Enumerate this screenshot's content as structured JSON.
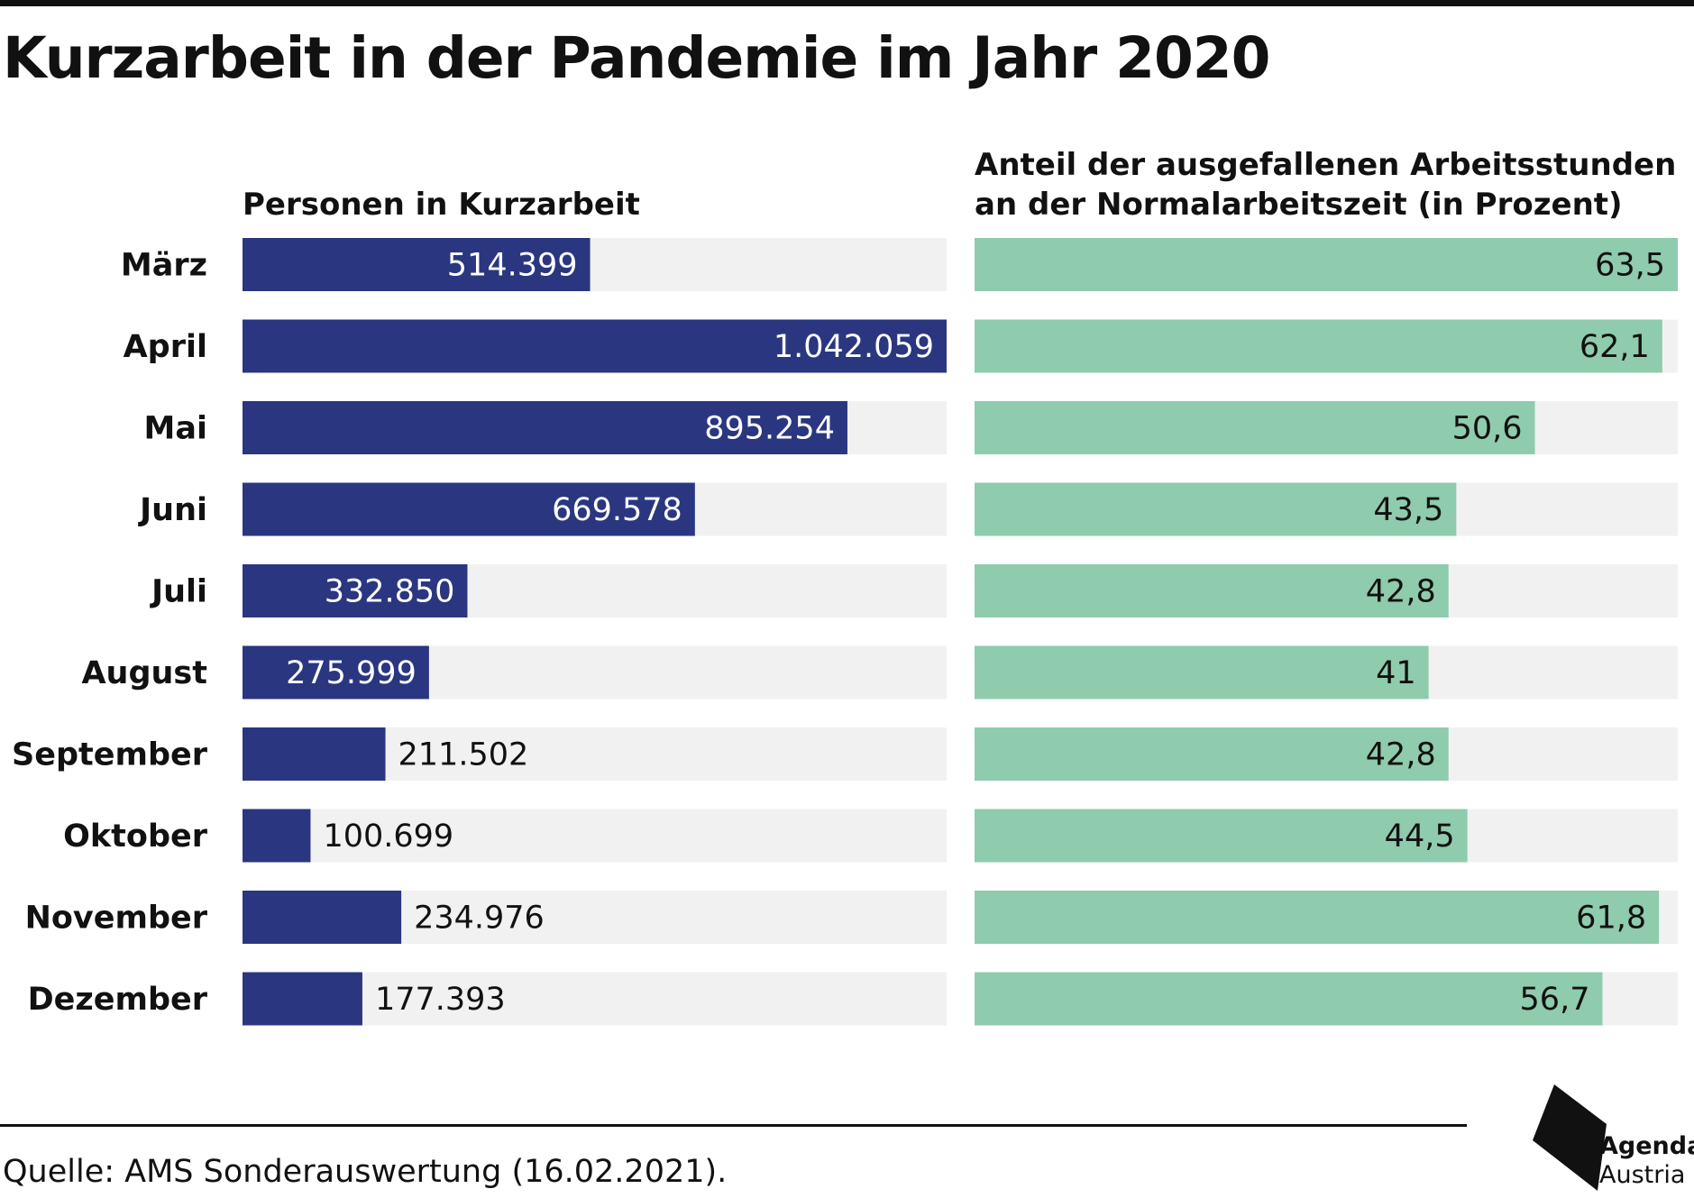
{
  "title": "Kurzarbeit in der Pandemie im Jahr 2020",
  "source": "Quelle: AMS Sonderauswertung (16.02.2021).",
  "brand": {
    "line1": "Agenda",
    "line2": "Austria"
  },
  "colors": {
    "persons_bar": "#2b3680",
    "share_bar": "#8fcbad",
    "track": "#f1f1f1"
  },
  "chart_data": [
    {
      "type": "bar",
      "orientation": "horizontal",
      "title": "Personen in Kurzarbeit",
      "categories": [
        "März",
        "April",
        "Mai",
        "Juni",
        "Juli",
        "August",
        "September",
        "Oktober",
        "November",
        "Dezember"
      ],
      "values": [
        514399,
        1042059,
        895254,
        669578,
        332850,
        275999,
        211502,
        100699,
        234976,
        177393
      ],
      "labels": [
        "514.399",
        "1.042.059",
        "895.254",
        "669.578",
        "332.850",
        "275.999",
        "211.502",
        "100.699",
        "234.976",
        "177.393"
      ],
      "xlim": [
        0,
        1042059
      ],
      "grid": false
    },
    {
      "type": "bar",
      "orientation": "horizontal",
      "title": "Anteil der ausgefallenen Arbeitsstunden an der Normalarbeitszeit (in Prozent)",
      "title_lines": [
        "Anteil der ausgefallenen Arbeitsstunden",
        "an der Normalarbeitszeit (in Prozent)"
      ],
      "categories": [
        "März",
        "April",
        "Mai",
        "Juni",
        "Juli",
        "August",
        "September",
        "Oktober",
        "November",
        "Dezember"
      ],
      "values": [
        63.5,
        62.1,
        50.6,
        43.5,
        42.8,
        41,
        42.8,
        44.5,
        61.8,
        56.7
      ],
      "labels": [
        "63,5",
        "62,1",
        "50,6",
        "43,5",
        "42,8",
        "41",
        "42,8",
        "44,5",
        "61,8",
        "56,7"
      ],
      "xlim": [
        0,
        63.5
      ],
      "grid": false
    }
  ]
}
